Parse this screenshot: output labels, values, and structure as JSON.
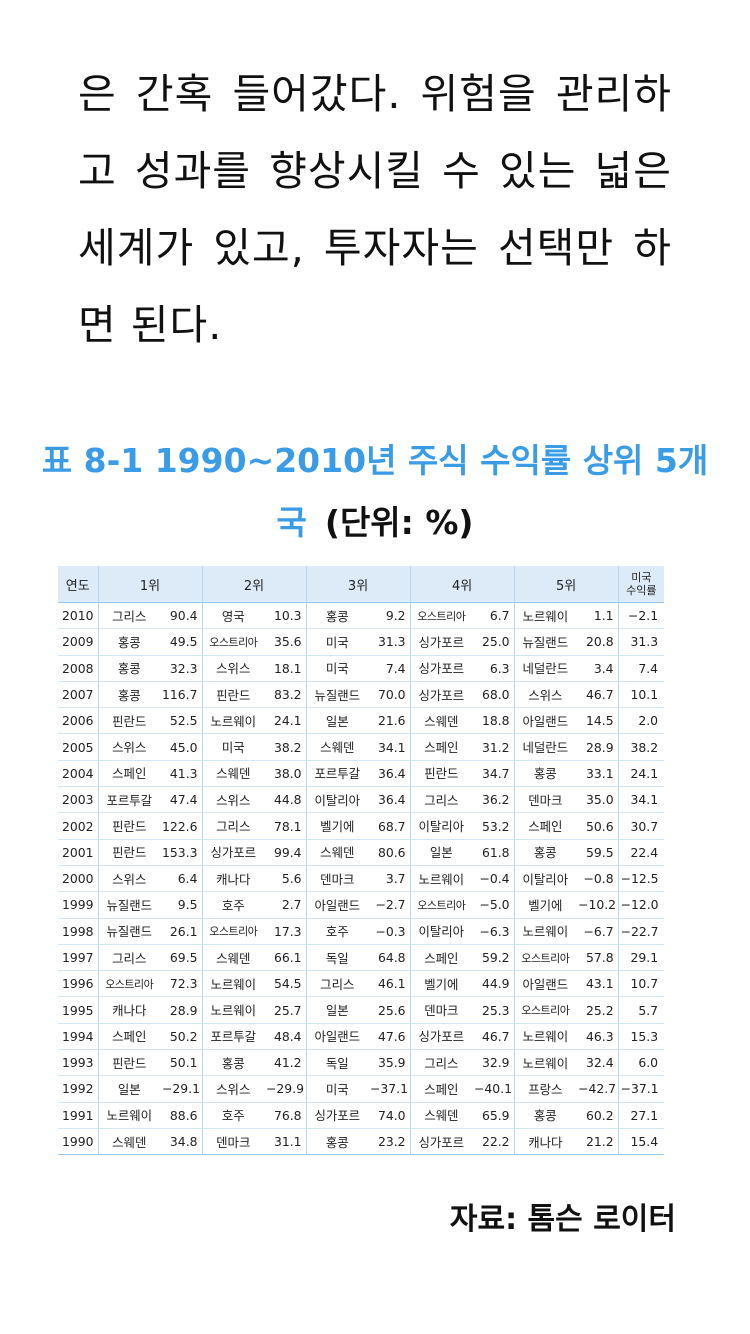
{
  "paragraph": "은 간혹 들어갔다. 위험을 관리하고 성과를 향상시킬 수 있는 넓은 세계가 있고, 투자자는 선택만 하면 된다.",
  "title": "표 8-1 1990~2010년 주식 수익률 상위 5개국",
  "unit": "(단위: %)",
  "table": {
    "headers": [
      "연도",
      "1위",
      "2위",
      "3위",
      "4위",
      "5위"
    ],
    "us_header_line1": "미국",
    "us_header_line2": "수익률",
    "rows": [
      {
        "year": "2010",
        "c": [
          [
            "그리스",
            "90.4"
          ],
          [
            "영국",
            "10.3"
          ],
          [
            "홍콩",
            "9.2"
          ],
          [
            "오스트리아",
            "6.7"
          ],
          [
            "노르웨이",
            "1.1"
          ]
        ],
        "us": "−2.1"
      },
      {
        "year": "2009",
        "c": [
          [
            "홍콩",
            "49.5"
          ],
          [
            "오스트리아",
            "35.6"
          ],
          [
            "미국",
            "31.3"
          ],
          [
            "싱가포르",
            "25.0"
          ],
          [
            "뉴질랜드",
            "20.8"
          ]
        ],
        "us": "31.3"
      },
      {
        "year": "2008",
        "c": [
          [
            "홍콩",
            "32.3"
          ],
          [
            "스위스",
            "18.1"
          ],
          [
            "미국",
            "7.4"
          ],
          [
            "싱가포르",
            "6.3"
          ],
          [
            "네덜란드",
            "3.4"
          ]
        ],
        "us": "7.4"
      },
      {
        "year": "2007",
        "c": [
          [
            "홍콩",
            "116.7"
          ],
          [
            "핀란드",
            "83.2"
          ],
          [
            "뉴질랜드",
            "70.0"
          ],
          [
            "싱가포르",
            "68.0"
          ],
          [
            "스위스",
            "46.7"
          ]
        ],
        "us": "10.1"
      },
      {
        "year": "2006",
        "c": [
          [
            "핀란드",
            "52.5"
          ],
          [
            "노르웨이",
            "24.1"
          ],
          [
            "일본",
            "21.6"
          ],
          [
            "스웨덴",
            "18.8"
          ],
          [
            "아일랜드",
            "14.5"
          ]
        ],
        "us": "2.0"
      },
      {
        "year": "2005",
        "c": [
          [
            "스위스",
            "45.0"
          ],
          [
            "미국",
            "38.2"
          ],
          [
            "스웨덴",
            "34.1"
          ],
          [
            "스페인",
            "31.2"
          ],
          [
            "네덜란드",
            "28.9"
          ]
        ],
        "us": "38.2"
      },
      {
        "year": "2004",
        "c": [
          [
            "스페인",
            "41.3"
          ],
          [
            "스웨덴",
            "38.0"
          ],
          [
            "포르투갈",
            "36.4"
          ],
          [
            "핀란드",
            "34.7"
          ],
          [
            "홍콩",
            "33.1"
          ]
        ],
        "us": "24.1"
      },
      {
        "year": "2003",
        "c": [
          [
            "포르투갈",
            "47.4"
          ],
          [
            "스위스",
            "44.8"
          ],
          [
            "이탈리아",
            "36.4"
          ],
          [
            "그리스",
            "36.2"
          ],
          [
            "덴마크",
            "35.0"
          ]
        ],
        "us": "34.1"
      },
      {
        "year": "2002",
        "c": [
          [
            "핀란드",
            "122.6"
          ],
          [
            "그리스",
            "78.1"
          ],
          [
            "벨기에",
            "68.7"
          ],
          [
            "이탈리아",
            "53.2"
          ],
          [
            "스페인",
            "50.6"
          ]
        ],
        "us": "30.7"
      },
      {
        "year": "2001",
        "c": [
          [
            "핀란드",
            "153.3"
          ],
          [
            "싱가포르",
            "99.4"
          ],
          [
            "스웨덴",
            "80.6"
          ],
          [
            "일본",
            "61.8"
          ],
          [
            "홍콩",
            "59.5"
          ]
        ],
        "us": "22.4"
      },
      {
        "year": "2000",
        "c": [
          [
            "스위스",
            "6.4"
          ],
          [
            "캐나다",
            "5.6"
          ],
          [
            "덴마크",
            "3.7"
          ],
          [
            "노르웨이",
            "−0.4"
          ],
          [
            "이탈리아",
            "−0.8"
          ]
        ],
        "us": "−12.5"
      },
      {
        "year": "1999",
        "c": [
          [
            "뉴질랜드",
            "9.5"
          ],
          [
            "호주",
            "2.7"
          ],
          [
            "아일랜드",
            "−2.7"
          ],
          [
            "오스트리아",
            "−5.0"
          ],
          [
            "벨기에",
            "−10.2"
          ]
        ],
        "us": "−12.0"
      },
      {
        "year": "1998",
        "c": [
          [
            "뉴질랜드",
            "26.1"
          ],
          [
            "오스트리아",
            "17.3"
          ],
          [
            "호주",
            "−0.3"
          ],
          [
            "이탈리아",
            "−6.3"
          ],
          [
            "노르웨이",
            "−6.7"
          ]
        ],
        "us": "−22.7"
      },
      {
        "year": "1997",
        "c": [
          [
            "그리스",
            "69.5"
          ],
          [
            "스웨덴",
            "66.1"
          ],
          [
            "독일",
            "64.8"
          ],
          [
            "스페인",
            "59.2"
          ],
          [
            "오스트리아",
            "57.8"
          ]
        ],
        "us": "29.1"
      },
      {
        "year": "1996",
        "c": [
          [
            "오스트리아",
            "72.3"
          ],
          [
            "노르웨이",
            "54.5"
          ],
          [
            "그리스",
            "46.1"
          ],
          [
            "벨기에",
            "44.9"
          ],
          [
            "아일랜드",
            "43.1"
          ]
        ],
        "us": "10.7"
      },
      {
        "year": "1995",
        "c": [
          [
            "캐나다",
            "28.9"
          ],
          [
            "노르웨이",
            "25.7"
          ],
          [
            "일본",
            "25.6"
          ],
          [
            "덴마크",
            "25.3"
          ],
          [
            "오스트리아",
            "25.2"
          ]
        ],
        "us": "5.7"
      },
      {
        "year": "1994",
        "c": [
          [
            "스페인",
            "50.2"
          ],
          [
            "포르투갈",
            "48.4"
          ],
          [
            "아일랜드",
            "47.6"
          ],
          [
            "싱가포르",
            "46.7"
          ],
          [
            "노르웨이",
            "46.3"
          ]
        ],
        "us": "15.3"
      },
      {
        "year": "1993",
        "c": [
          [
            "핀란드",
            "50.1"
          ],
          [
            "홍콩",
            "41.2"
          ],
          [
            "독일",
            "35.9"
          ],
          [
            "그리스",
            "32.9"
          ],
          [
            "노르웨이",
            "32.4"
          ]
        ],
        "us": "6.0"
      },
      {
        "year": "1992",
        "c": [
          [
            "일본",
            "−29.1"
          ],
          [
            "스위스",
            "−29.9"
          ],
          [
            "미국",
            "−37.1"
          ],
          [
            "스페인",
            "−40.1"
          ],
          [
            "프랑스",
            "−42.7"
          ]
        ],
        "us": "−37.1"
      },
      {
        "year": "1991",
        "c": [
          [
            "노르웨이",
            "88.6"
          ],
          [
            "호주",
            "76.8"
          ],
          [
            "싱가포르",
            "74.0"
          ],
          [
            "스웨덴",
            "65.9"
          ],
          [
            "홍콩",
            "60.2"
          ]
        ],
        "us": "27.1"
      },
      {
        "year": "1990",
        "c": [
          [
            "스웨덴",
            "34.8"
          ],
          [
            "덴마크",
            "31.1"
          ],
          [
            "홍콩",
            "23.2"
          ],
          [
            "싱가포르",
            "22.2"
          ],
          [
            "캐나다",
            "21.2"
          ]
        ],
        "us": "15.4"
      }
    ]
  },
  "source": "자료: 톰슨 로이터"
}
